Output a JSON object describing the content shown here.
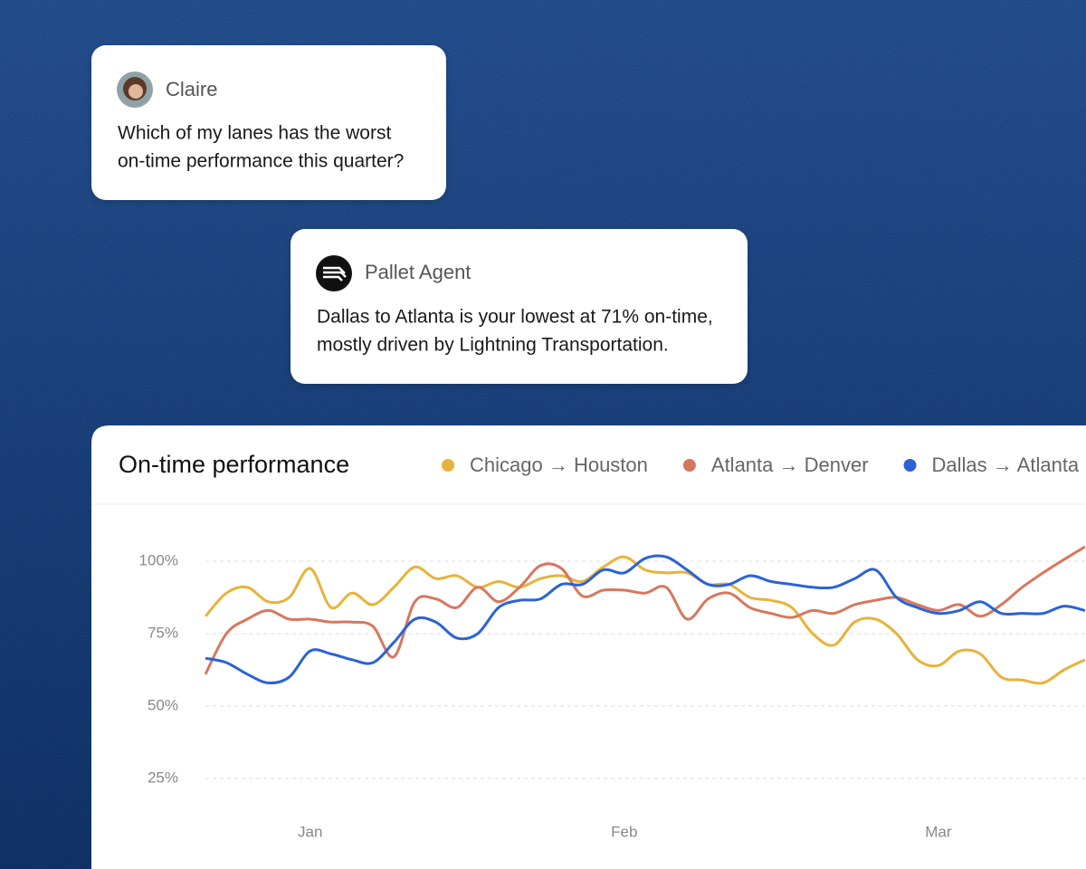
{
  "messages": [
    {
      "author": "Claire",
      "lines": [
        "Which of my lanes has the worst",
        "on-time performance this quarter?"
      ]
    },
    {
      "author": "Pallet Agent",
      "lines": [
        "Dallas to Atlanta is your lowest at 71% on-time,",
        "mostly driven by Lightning Transportation."
      ]
    }
  ],
  "chart_data": {
    "type": "line",
    "title": "On-time performance",
    "categories": [
      null,
      null,
      null,
      null,
      null,
      "Jan",
      null,
      null,
      null,
      null,
      null,
      null,
      null,
      null,
      null,
      null,
      null,
      null,
      null,
      null,
      "Feb",
      null,
      null,
      null,
      null,
      null,
      null,
      null,
      null,
      null,
      null,
      null,
      null,
      null,
      null,
      "Mar",
      null,
      null,
      null,
      null,
      null,
      null,
      null
    ],
    "series": [
      {
        "name": "Chicago → Houston",
        "color": "#e8b23a",
        "values": [
          81,
          89,
          91,
          86,
          87.5,
          97.5,
          84,
          89,
          85,
          91,
          98,
          94,
          95,
          91,
          93,
          91,
          94,
          95,
          93,
          98,
          101.5,
          97,
          96,
          96,
          92,
          92,
          87.5,
          86.5,
          84,
          75,
          71,
          79,
          80,
          75,
          66,
          64,
          69,
          68,
          60,
          59,
          58,
          62.5,
          66
        ]
      },
      {
        "name": "Atlanta → Denver",
        "color": "#d6775d",
        "values": [
          61,
          75,
          80,
          83,
          80,
          80,
          79,
          79,
          77.5,
          67,
          86,
          87,
          84,
          91,
          86,
          91,
          98.5,
          97.5,
          88,
          90,
          90,
          89,
          91,
          80,
          87,
          89,
          84,
          82,
          80.6,
          83,
          82,
          85,
          86.5,
          87.5,
          85,
          83,
          85,
          81,
          85,
          91,
          96,
          100.6,
          105
        ]
      },
      {
        "name": "Dallas → Atlanta",
        "color": "#2a62d8",
        "values": [
          66.5,
          65,
          61,
          58,
          60,
          69,
          68,
          66,
          65,
          72,
          80,
          79,
          73.5,
          75,
          84,
          86.5,
          87,
          92,
          92,
          97,
          96,
          101,
          101.5,
          97,
          92,
          92,
          95,
          93,
          92,
          91,
          91,
          94,
          97,
          87.5,
          84,
          82,
          83,
          86,
          82,
          82,
          82,
          84.5,
          83
        ]
      }
    ],
    "ylim": [
      25,
      100
    ],
    "yticks": [
      {
        "value": 25,
        "label": "25%"
      },
      {
        "value": 50,
        "label": "50%"
      },
      {
        "value": 75,
        "label": "75%"
      },
      {
        "value": 100,
        "label": "100%"
      }
    ],
    "grid": true
  }
}
